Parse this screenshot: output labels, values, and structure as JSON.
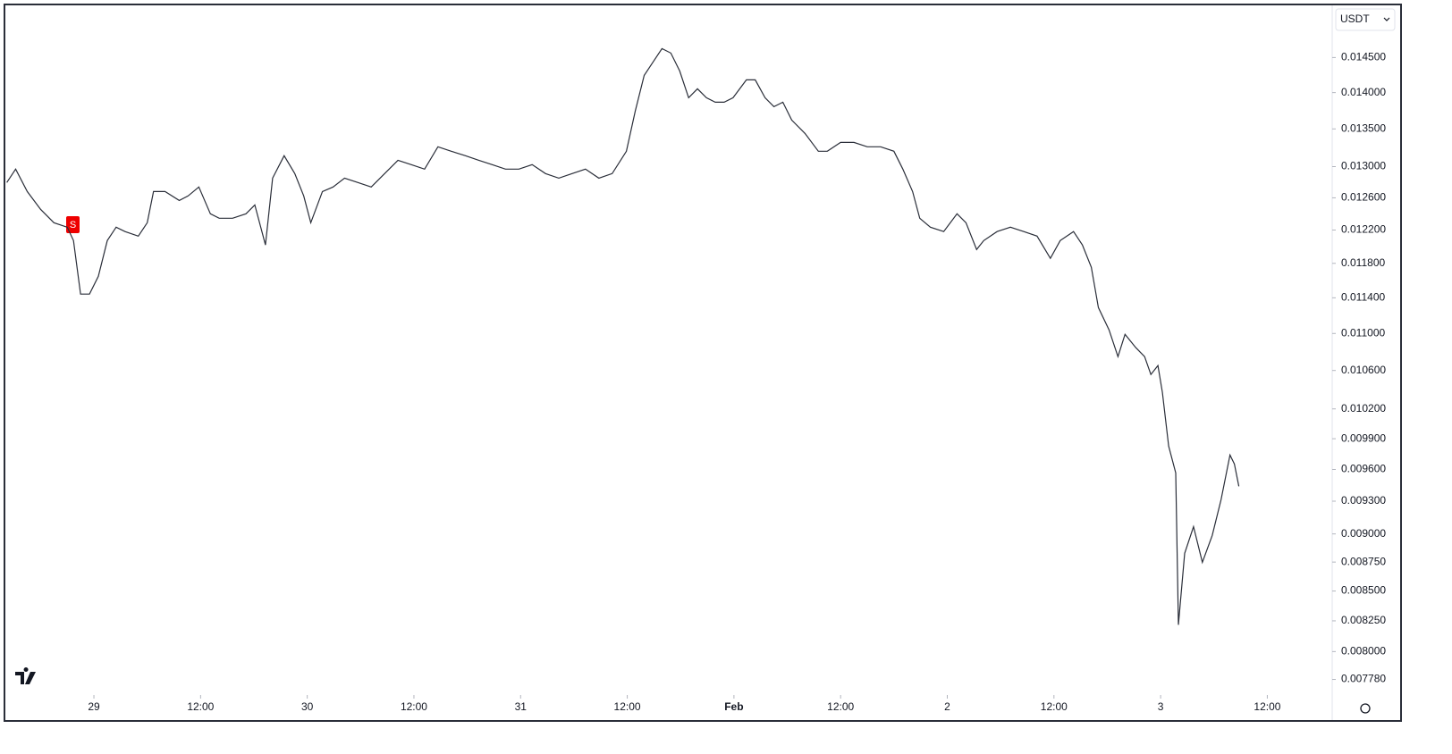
{
  "chart_data": {
    "type": "line",
    "currency": "USDT",
    "annotation": "S",
    "color": "#2a2e39",
    "yscale": "log",
    "ylim": [
      0.00768,
      0.01525
    ],
    "yticks": [
      {
        "value": 0.0145,
        "label": "0.014500"
      },
      {
        "value": 0.014,
        "label": "0.014000"
      },
      {
        "value": 0.0135,
        "label": "0.013500"
      },
      {
        "value": 0.013,
        "label": "0.013000"
      },
      {
        "value": 0.0126,
        "label": "0.012600"
      },
      {
        "value": 0.0122,
        "label": "0.012200"
      },
      {
        "value": 0.0118,
        "label": "0.011800"
      },
      {
        "value": 0.0114,
        "label": "0.011400"
      },
      {
        "value": 0.011,
        "label": "0.011000"
      },
      {
        "value": 0.0106,
        "label": "0.010600"
      },
      {
        "value": 0.0102,
        "label": "0.010200"
      },
      {
        "value": 0.0099,
        "label": "0.009900"
      },
      {
        "value": 0.0096,
        "label": "0.009600"
      },
      {
        "value": 0.0093,
        "label": "0.009300"
      },
      {
        "value": 0.009,
        "label": "0.009000"
      },
      {
        "value": 0.00875,
        "label": "0.008750"
      },
      {
        "value": 0.0085,
        "label": "0.008500"
      },
      {
        "value": 0.00825,
        "label": "0.008250"
      },
      {
        "value": 0.008,
        "label": "0.008000"
      },
      {
        "value": 0.00778,
        "label": "0.007780"
      }
    ],
    "xlim": [
      -9.76,
      139.3
    ],
    "xticks": [
      {
        "value": 0,
        "label": "29"
      },
      {
        "value": 12,
        "label": "12:00"
      },
      {
        "value": 24,
        "label": "30"
      },
      {
        "value": 36,
        "label": "12:00"
      },
      {
        "value": 48,
        "label": "31"
      },
      {
        "value": 60,
        "label": "12:00"
      },
      {
        "value": 72,
        "label": "Feb"
      },
      {
        "value": 84,
        "label": "12:00"
      },
      {
        "value": 96,
        "label": "2"
      },
      {
        "value": 108,
        "label": "12:00"
      },
      {
        "value": 120,
        "label": "3"
      },
      {
        "value": 132,
        "label": "12:00"
      }
    ],
    "x": [
      -9.8,
      -8.8,
      -7.5,
      -6.0,
      -4.5,
      -3.0,
      -2.3,
      -1.5,
      -0.5,
      0.5,
      1.5,
      2.5,
      3.5,
      5.0,
      6.0,
      6.7,
      8.0,
      9.6,
      10.6,
      11.8,
      13.1,
      14.1,
      15.6,
      17.1,
      18.1,
      19.3,
      20.1,
      21.4,
      22.6,
      23.6,
      24.4,
      25.7,
      26.9,
      28.2,
      29.7,
      31.2,
      32.7,
      34.2,
      35.7,
      37.2,
      38.7,
      40.2,
      41.8,
      43.3,
      44.8,
      46.3,
      47.8,
      49.3,
      50.8,
      52.3,
      53.8,
      55.3,
      56.8,
      58.3,
      59.9,
      60.9,
      61.9,
      62.9,
      63.9,
      64.9,
      65.9,
      66.9,
      67.9,
      68.9,
      69.9,
      70.9,
      71.9,
      73.4,
      74.4,
      75.5,
      76.5,
      77.5,
      78.5,
      80.0,
      81.5,
      82.5,
      84.0,
      85.5,
      87.0,
      88.5,
      90.0,
      91.0,
      92.1,
      92.9,
      94.1,
      95.6,
      97.1,
      98.1,
      99.3,
      100.1,
      101.6,
      103.1,
      104.6,
      106.1,
      107.6,
      108.7,
      110.2,
      111.2,
      112.2,
      113.0,
      114.2,
      115.2,
      116.0,
      117.2,
      118.2,
      118.9,
      119.7,
      120.2,
      120.9,
      121.7,
      122.0,
      122.7,
      123.7,
      124.7,
      125.8,
      126.8,
      127.8,
      128.3,
      128.8
    ],
    "values": [
      0.012794,
      0.012967,
      0.01268,
      0.012456,
      0.01229,
      0.012235,
      0.012072,
      0.011442,
      0.011442,
      0.011648,
      0.012072,
      0.012235,
      0.012181,
      0.012126,
      0.01229,
      0.01268,
      0.01268,
      0.012567,
      0.012624,
      0.012737,
      0.0124,
      0.012345,
      0.012345,
      0.0124,
      0.012511,
      0.012019,
      0.012851,
      0.013142,
      0.012909,
      0.012624,
      0.01229,
      0.01268,
      0.012737,
      0.012851,
      0.012794,
      0.012737,
      0.012909,
      0.013083,
      0.013025,
      0.012967,
      0.01326,
      0.013201,
      0.013142,
      0.013083,
      0.013025,
      0.012967,
      0.012967,
      0.013025,
      0.012909,
      0.012851,
      0.012909,
      0.012967,
      0.012851,
      0.012909,
      0.013201,
      0.013742,
      0.014243,
      0.014435,
      0.01463,
      0.014565,
      0.014307,
      0.013928,
      0.014053,
      0.013928,
      0.013866,
      0.013866,
      0.013928,
      0.014179,
      0.014179,
      0.013928,
      0.013804,
      0.013866,
      0.01362,
      0.013439,
      0.013201,
      0.013201,
      0.013319,
      0.013319,
      0.01326,
      0.01326,
      0.013201,
      0.012967,
      0.01268,
      0.012345,
      0.012235,
      0.012181,
      0.0124,
      0.01229,
      0.011965,
      0.012072,
      0.012181,
      0.012235,
      0.012181,
      0.012126,
      0.011859,
      0.012072,
      0.012181,
      0.012019,
      0.011753,
      0.011289,
      0.01104,
      0.010748,
      0.010991,
      0.010845,
      0.010748,
      0.010557,
      0.010652,
      0.010369,
      0.009827,
      0.009567,
      0.008217,
      0.008827,
      0.009066,
      0.008748,
      0.008986,
      0.009313,
      0.00974,
      0.009653,
      0.009439
    ]
  }
}
